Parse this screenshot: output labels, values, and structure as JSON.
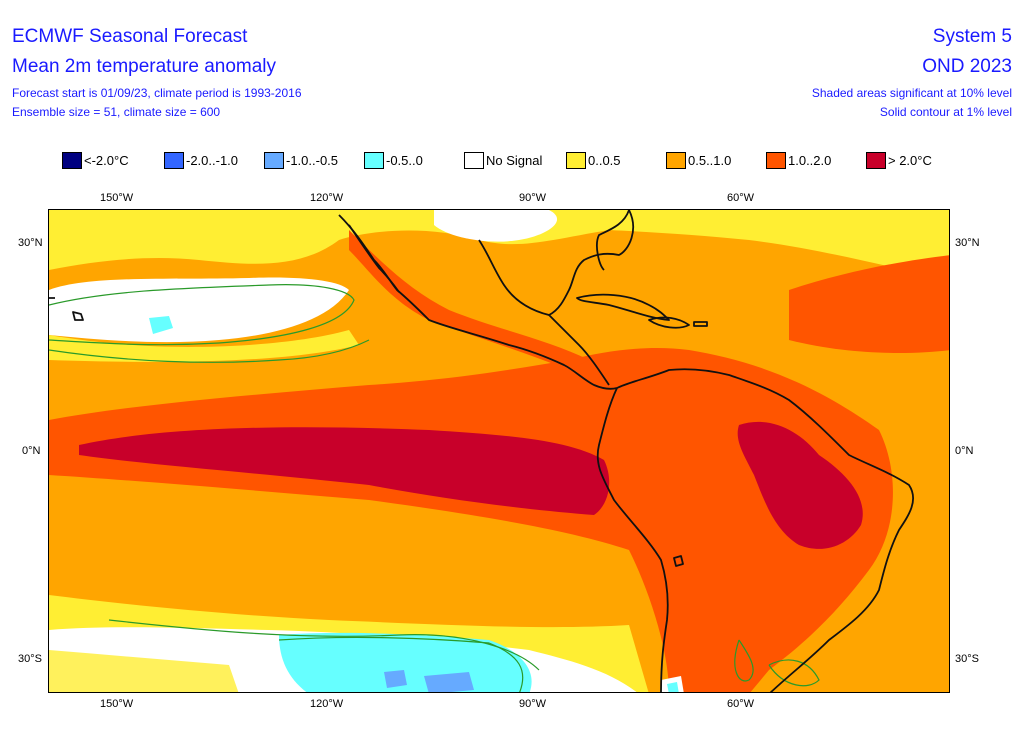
{
  "header": {
    "title": "ECMWF Seasonal Forecast",
    "subtitle": "Mean 2m temperature anomaly",
    "forecast_line": "Forecast start is 01/09/23, climate period is 1993-2016",
    "ensemble_line": "Ensemble size = 51, climate size = 600",
    "system": "System 5",
    "period": "OND 2023",
    "significance_1": "Shaded areas significant at 10% level",
    "significance_2": "Solid contour at 1% level"
  },
  "legend": [
    {
      "label": "<-2.0°C",
      "color": "#000080"
    },
    {
      "label": "-2.0..-1.0",
      "color": "#3366ff"
    },
    {
      "label": "-1.0..-0.5",
      "color": "#66aaff"
    },
    {
      "label": "-0.5..0",
      "color": "#66ffff"
    },
    {
      "label": "No Signal",
      "color": "#ffffff"
    },
    {
      "label": "0..0.5",
      "color": "#ffee33"
    },
    {
      "label": "0.5..1.0",
      "color": "#ffa500"
    },
    {
      "label": "1.0..2.0",
      "color": "#ff5500"
    },
    {
      "label": "> 2.0°C",
      "color": "#c8002a"
    }
  ],
  "axes": {
    "lon_ticks": [
      "150°W",
      "120°W",
      "90°W",
      "60°W"
    ],
    "lat_ticks": [
      "30°N",
      "0°N",
      "30°S"
    ]
  }
}
